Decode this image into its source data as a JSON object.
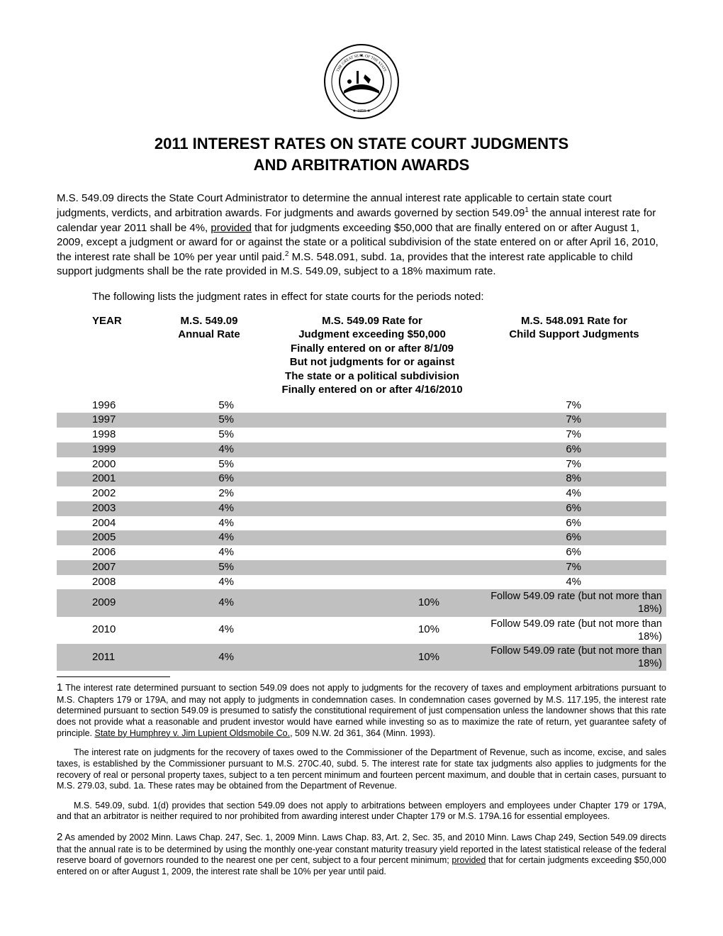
{
  "header": {
    "title_line1": "2011 INTEREST RATES ON STATE COURT JUDGMENTS",
    "title_line2": "AND ARBITRATION AWARDS"
  },
  "intro": {
    "part1": "M.S. 549.09 directs the State Court Administrator to determine the annual interest rate applicable to certain state court judgments, verdicts, and arbitration awards.  For judgments and awards governed by section 549.09",
    "sup1": "1",
    "part2": " the annual interest rate for calendar year 2011 shall be 4%, ",
    "provided": "provided",
    "part3": " that for judgments exceeding $50,000 that are finally entered on or after August 1, 2009, except a judgment or award for or against the state or a political subdivision of the state entered on or after April 16, 2010, the interest rate shall be 10% per year until paid.",
    "sup2": "2",
    "part4": " M.S. 548.091, subd. 1a, provides that the interest rate applicable to child support judgments shall be the rate provided in M.S. 549.09, subject to a 18% maximum rate."
  },
  "listing_intro": "The following lists the judgment rates in effect for state courts for the periods noted:",
  "table": {
    "headers": {
      "year": "YEAR",
      "annual_l1": "M.S. 549.09",
      "annual_l2": "Annual Rate",
      "judgment_l1": "M.S. 549.09 Rate for",
      "judgment_l2": "Judgment exceeding $50,000",
      "judgment_l3": "Finally entered on or after 8/1/09",
      "judgment_l4": "But not judgments for or against",
      "judgment_l5": "The state or a political subdivision",
      "judgment_l6": "Finally entered on or after 4/16/2010",
      "child_l1": "M.S. 548.091 Rate for",
      "child_l2": "Child Support Judgments"
    },
    "rows": [
      {
        "year": "1996",
        "annual": "5%",
        "judgment": "",
        "child": "7%",
        "child_is_text": false,
        "shade": false
      },
      {
        "year": "1997",
        "annual": "5%",
        "judgment": "",
        "child": "7%",
        "child_is_text": false,
        "shade": true
      },
      {
        "year": "1998",
        "annual": "5%",
        "judgment": "",
        "child": "7%",
        "child_is_text": false,
        "shade": false
      },
      {
        "year": "1999",
        "annual": "4%",
        "judgment": "",
        "child": "6%",
        "child_is_text": false,
        "shade": true
      },
      {
        "year": "2000",
        "annual": "5%",
        "judgment": "",
        "child": "7%",
        "child_is_text": false,
        "shade": false
      },
      {
        "year": "2001",
        "annual": "6%",
        "judgment": "",
        "child": "8%",
        "child_is_text": false,
        "shade": true
      },
      {
        "year": "2002",
        "annual": "2%",
        "judgment": "",
        "child": "4%",
        "child_is_text": false,
        "shade": false
      },
      {
        "year": "2003",
        "annual": "4%",
        "judgment": "",
        "child": "6%",
        "child_is_text": false,
        "shade": true
      },
      {
        "year": "2004",
        "annual": "4%",
        "judgment": "",
        "child": "6%",
        "child_is_text": false,
        "shade": false
      },
      {
        "year": "2005",
        "annual": "4%",
        "judgment": "",
        "child": "6%",
        "child_is_text": false,
        "shade": true
      },
      {
        "year": "2006",
        "annual": "4%",
        "judgment": "",
        "child": "6%",
        "child_is_text": false,
        "shade": false
      },
      {
        "year": "2007",
        "annual": "5%",
        "judgment": "",
        "child": "7%",
        "child_is_text": false,
        "shade": true
      },
      {
        "year": "2008",
        "annual": "4%",
        "judgment": "",
        "child": "4%",
        "child_is_text": false,
        "shade": false
      },
      {
        "year": "2009",
        "annual": "4%",
        "judgment": "10%",
        "child": "Follow 549.09 rate (but not more than 18%)",
        "child_is_text": true,
        "shade": true
      },
      {
        "year": "2010",
        "annual": "4%",
        "judgment": "10%",
        "child": "Follow 549.09 rate (but not more than 18%)",
        "child_is_text": true,
        "shade": false
      },
      {
        "year": "2011",
        "annual": "4%",
        "judgment": "10%",
        "child": "Follow 549.09 rate (but not more than 18%)",
        "child_is_text": true,
        "shade": true
      }
    ]
  },
  "footnotes": {
    "fn1_num": "1",
    "fn1_p1a": "  The interest rate determined pursuant to section 549.09 does not apply to judgments for the recovery of taxes and employment arbitrations pursuant to M.S. Chapters 179 or 179A, and may not apply to judgments in condemnation cases.   In condemnation cases governed by M.S. 117.195, the interest rate determined pursuant to section 549.09 is presumed to satisfy the constitutional requirement of just compensation unless the landowner shows that this rate does not provide what a reasonable and prudent investor would have earned while investing so as to maximize the rate of return, yet guarantee safety of principle.  ",
    "fn1_case": "State by Humphrey v. Jim Lupient Oldsmobile Co.",
    "fn1_p1b": ", 509 N.W. 2d 361, 364 (Minn. 1993).",
    "fn1_p2": "The interest rate on judgments for the recovery of taxes owed to the Commissioner of the Department of Revenue, such as income, excise, and sales taxes, is established by the Commissioner pursuant to M.S. 270C.40, subd. 5.  The interest rate for state tax judgments also applies to judgments for the recovery of real or personal property taxes, subject to a ten percent minimum and fourteen percent maximum, and double that in certain cases, pursuant to M.S. 279.03, subd. 1a. These rates may be obtained from the Department of Revenue.",
    "fn1_p3": "M.S. 549.09, subd. 1(d) provides that section 549.09 does not apply to arbitrations between employers and employees under Chapter 179 or 179A, and that an arbitrator is neither required to nor prohibited from awarding interest under Chapter 179 or M.S. 179A.16 for essential employees.",
    "fn2_num": "2",
    "fn2_a": "   As amended by 2002 Minn. Laws Chap. 247, Sec. 1,  2009 Minn. Laws Chap. 83, Art. 2, Sec. 35, and 2010 Minn. Laws Chap 249, Section 549.09 directs that the annual rate is to be determined by using the monthly one-year constant maturity treasury yield reported in the latest statistical release of the federal reserve board of governors rounded to the nearest one per cent, subject to a four percent minimum; ",
    "fn2_provided": "provided",
    "fn2_b": " that for certain judgments exceeding $50,000 entered on or after August 1, 2009, the interest rate shall be 10% per year until paid."
  },
  "seal": {
    "outer_text_top": "THE GREAT SEAL OF THE STATE OF",
    "outer_text_bottom": "MINNESOTA",
    "motto": "L'ETOILE DU NORD",
    "year": "1858"
  },
  "colors": {
    "background": "#ffffff",
    "text": "#000000",
    "shade": "#c0c0c0",
    "rule": "#000000"
  }
}
